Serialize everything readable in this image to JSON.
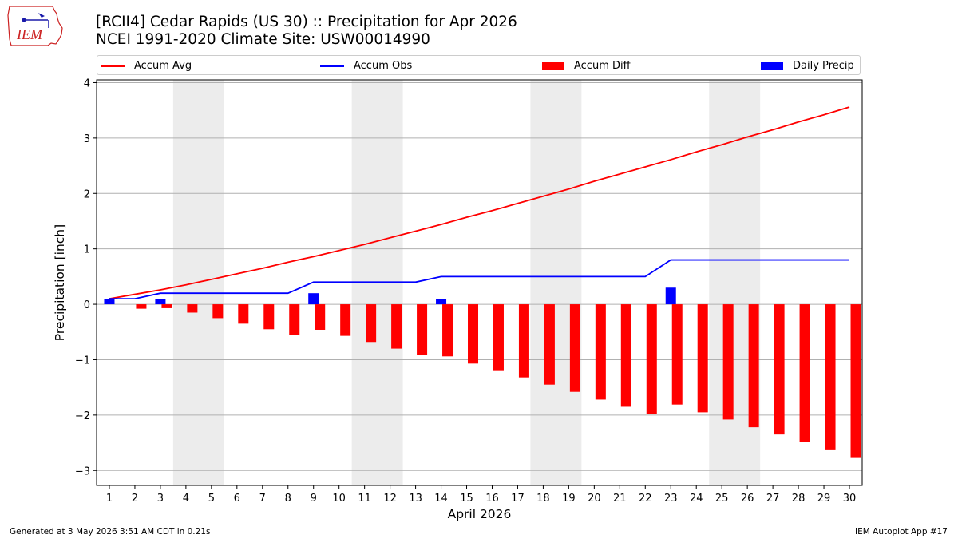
{
  "header": {
    "title_line1": "[RCII4] Cedar Rapids (US 30) :: Precipitation for Apr 2026",
    "title_line2": "NCEI 1991-2020 Climate Site: USW00014990",
    "logo_text": "IEM"
  },
  "legend": [
    {
      "label": "Accum Avg",
      "color": "#ff0000",
      "kind": "line"
    },
    {
      "label": "Accum Obs",
      "color": "#0000ff",
      "kind": "line"
    },
    {
      "label": "Accum Diff",
      "color": "#ff0000",
      "kind": "bar"
    },
    {
      "label": "Daily Precip",
      "color": "#0000ff",
      "kind": "bar"
    }
  ],
  "footer": {
    "left": "Generated at 3 May 2026 3:51 AM CDT in 0.21s",
    "right": "IEM Autoplot App #17"
  },
  "chart_data": {
    "type": "bar",
    "xlabel": "April 2026",
    "ylabel": "Precipitation [inch]",
    "ylim": [
      -3.27,
      4.05
    ],
    "xlim": [
      0.5,
      30.5
    ],
    "yticks": [
      -3,
      -2,
      -1,
      0,
      1,
      2,
      3,
      4
    ],
    "ytick_labels": [
      "−3",
      "−2",
      "−1",
      "0",
      "1",
      "2",
      "3",
      "4"
    ],
    "grid": "horizontal",
    "legend_position": "top",
    "weekend_shading": [
      [
        3.5,
        5.5
      ],
      [
        10.5,
        12.5
      ],
      [
        17.5,
        19.5
      ],
      [
        24.5,
        26.5
      ]
    ],
    "days": [
      1,
      2,
      3,
      4,
      5,
      6,
      7,
      8,
      9,
      10,
      11,
      12,
      13,
      14,
      15,
      16,
      17,
      18,
      19,
      20,
      21,
      22,
      23,
      24,
      25,
      26,
      27,
      28,
      29,
      30
    ],
    "series": [
      {
        "name": "Accum Avg",
        "type": "line",
        "color": "#ff0000",
        "values": [
          0.1,
          0.18,
          0.26,
          0.35,
          0.45,
          0.55,
          0.65,
          0.76,
          0.86,
          0.97,
          1.08,
          1.2,
          1.32,
          1.44,
          1.57,
          1.69,
          1.82,
          1.95,
          2.08,
          2.22,
          2.35,
          2.48,
          2.61,
          2.75,
          2.88,
          3.02,
          3.15,
          3.29,
          3.42,
          3.56
        ]
      },
      {
        "name": "Accum Obs",
        "type": "line",
        "color": "#0000ff",
        "values": [
          0.1,
          0.1,
          0.2,
          0.2,
          0.2,
          0.2,
          0.2,
          0.2,
          0.4,
          0.4,
          0.4,
          0.4,
          0.4,
          0.5,
          0.5,
          0.5,
          0.5,
          0.5,
          0.5,
          0.5,
          0.5,
          0.5,
          0.8,
          0.8,
          0.8,
          0.8,
          0.8,
          0.8,
          0.8,
          0.8
        ]
      },
      {
        "name": "Accum Diff",
        "type": "bar",
        "color": "#ff0000",
        "values": [
          0.0,
          -0.08,
          -0.07,
          -0.15,
          -0.25,
          -0.35,
          -0.45,
          -0.56,
          -0.46,
          -0.57,
          -0.68,
          -0.8,
          -0.92,
          -0.94,
          -1.07,
          -1.19,
          -1.32,
          -1.45,
          -1.58,
          -1.72,
          -1.85,
          -1.98,
          -1.81,
          -1.95,
          -2.08,
          -2.22,
          -2.35,
          -2.48,
          -2.62,
          -2.76
        ]
      },
      {
        "name": "Daily Precip",
        "type": "bar",
        "color": "#0000ff",
        "values": [
          0.1,
          0.0,
          0.1,
          0.0,
          0.0,
          0.0,
          0.0,
          0.0,
          0.2,
          0.0,
          0.0,
          0.0,
          0.0,
          0.1,
          0.0,
          0.0,
          0.0,
          0.0,
          0.0,
          0.0,
          0.0,
          0.0,
          0.3,
          0.0,
          0.0,
          0.0,
          0.0,
          0.0,
          0.0,
          0.0
        ]
      }
    ]
  }
}
